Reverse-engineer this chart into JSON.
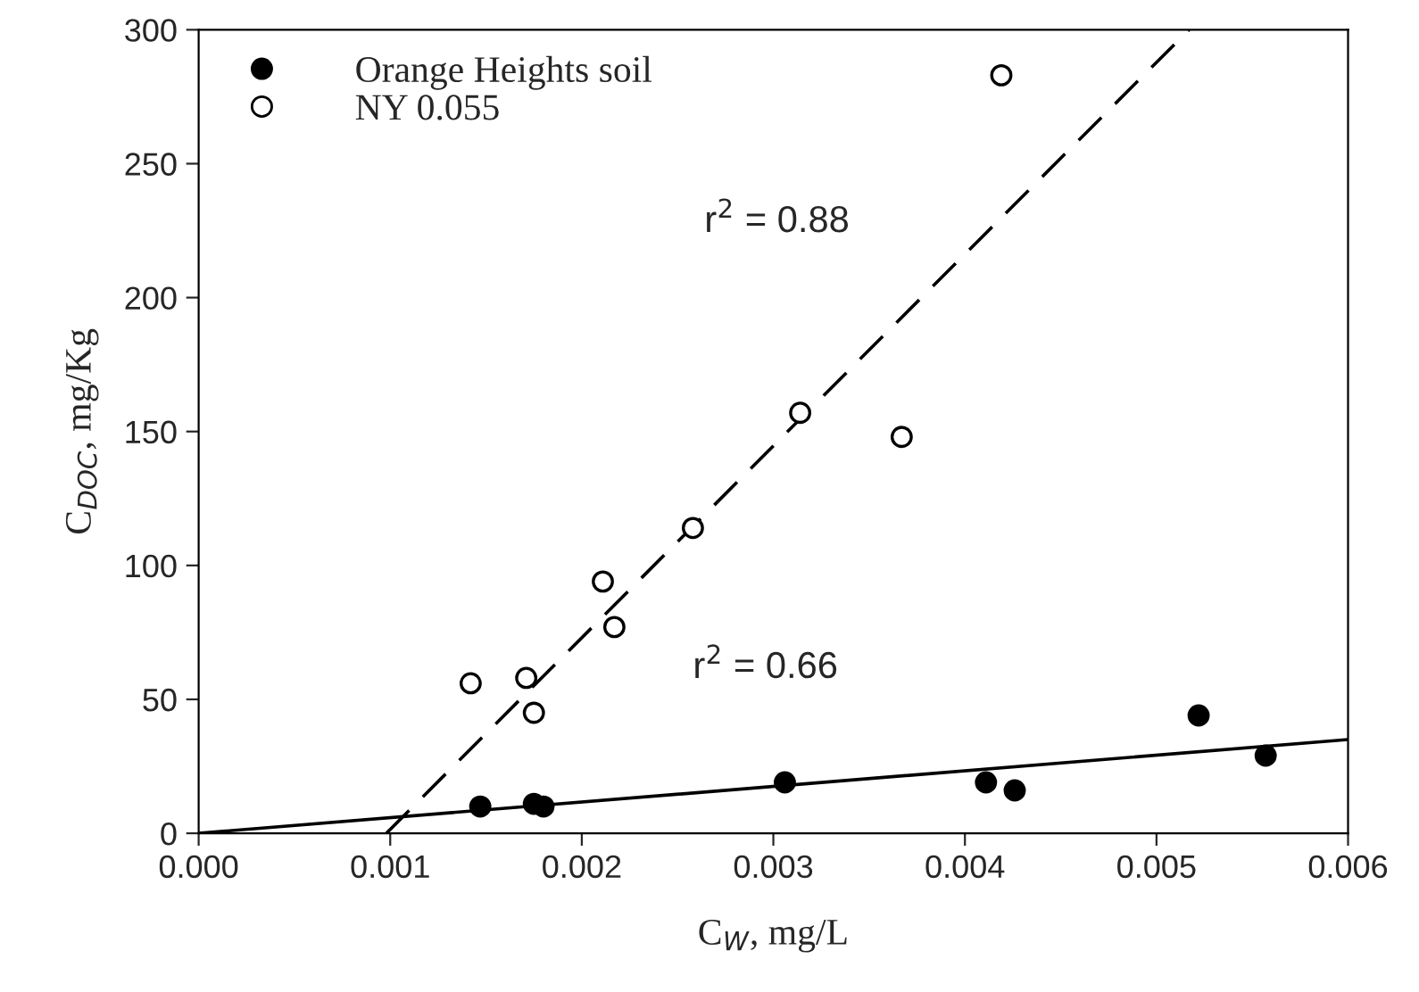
{
  "chart_data": {
    "type": "scatter",
    "xlabel": "C$_{W}$, mg/L",
    "ylabel": "C$_{DOC}$, mg/Kg",
    "xlim": [
      0,
      0.006
    ],
    "ylim": [
      0,
      300
    ],
    "xticks": [
      {
        "value": 0,
        "label": "0.000"
      },
      {
        "value": 0.001,
        "label": "0.001"
      },
      {
        "value": 0.002,
        "label": "0.002"
      },
      {
        "value": 0.003,
        "label": "0.003"
      },
      {
        "value": 0.004,
        "label": "0.004"
      },
      {
        "value": 0.005,
        "label": "0.005"
      },
      {
        "value": 0.006,
        "label": "0.006"
      }
    ],
    "yticks": [
      0,
      50,
      100,
      150,
      200,
      250,
      300
    ],
    "grid": false,
    "legend": "top left",
    "series": [
      {
        "name": "Orange Heights soil",
        "color": "#000000",
        "marker": "circle",
        "x": [
          0.00147,
          0.00175,
          0.0018,
          0.00306,
          0.00411,
          0.00426,
          0.00522,
          0.00557
        ],
        "values": [
          10,
          11,
          10,
          19,
          19,
          16,
          44,
          29
        ]
      },
      {
        "name": "NY 0.055",
        "color": "#ffffff",
        "marker": "circle",
        "x": [
          0.00142,
          0.00171,
          0.00175,
          0.00211,
          0.00217,
          0.00258,
          0.00314,
          0.00367,
          0.00419
        ],
        "values": [
          56,
          58,
          45,
          94,
          77,
          114,
          157,
          148,
          283
        ]
      },
      {
        "type": "line",
        "color": "#000000",
        "line_style": "solid",
        "x": [
          0,
          0.006
        ],
        "values": [
          0,
          35
        ]
      },
      {
        "type": "line",
        "color": "#000000",
        "line_style": "dashed",
        "x": [
          0.00098,
          0.00517
        ],
        "values": [
          0,
          300
        ]
      }
    ],
    "annotations": [
      "r$^{2}$ = 0.88",
      "r$^{2}$ = 0.66"
    ]
  }
}
